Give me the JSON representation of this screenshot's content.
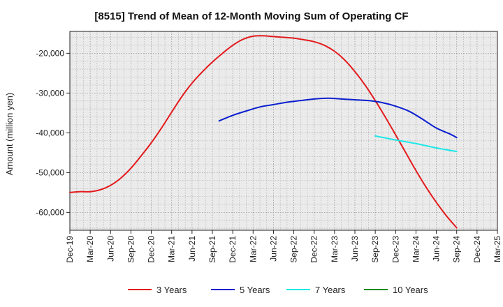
{
  "chart_data": {
    "type": "line",
    "title": "[8515]  Trend of Mean of 12-Month Moving Sum of Operating CF",
    "xlabel": "",
    "ylabel": "Amount (million yen)",
    "ylim": [
      -64500,
      -14500
    ],
    "yticks": [
      -60000,
      -50000,
      -40000,
      -30000,
      -20000
    ],
    "ytick_labels": [
      "-60,000",
      "-50,000",
      "-40,000",
      "-30,000",
      "-20,000"
    ],
    "x_labels": [
      "Dec-19",
      "Mar-20",
      "Jun-20",
      "Sep-20",
      "Dec-20",
      "Mar-21",
      "Jun-21",
      "Sep-21",
      "Dec-21",
      "Mar-22",
      "Jun-22",
      "Sep-22",
      "Dec-22",
      "Mar-23",
      "Jun-23",
      "Sep-23",
      "Dec-23",
      "Mar-24",
      "Jun-24",
      "Sep-24",
      "Dec-24",
      "Mar-25"
    ],
    "grid": true,
    "legend_position": "bottom",
    "series": [
      {
        "name": "3 Years",
        "color": "#e31a1c",
        "points": [
          [
            0,
            -55000
          ],
          [
            0.5,
            -54800
          ],
          [
            1,
            -54800
          ],
          [
            1.5,
            -54300
          ],
          [
            2,
            -53200
          ],
          [
            2.5,
            -51400
          ],
          [
            3,
            -48900
          ],
          [
            3.5,
            -45800
          ],
          [
            4,
            -42500
          ],
          [
            4.5,
            -38800
          ],
          [
            5,
            -34800
          ],
          [
            5.5,
            -30900
          ],
          [
            6,
            -27500
          ],
          [
            6.5,
            -24700
          ],
          [
            7,
            -22200
          ],
          [
            7.5,
            -20000
          ],
          [
            8,
            -18000
          ],
          [
            8.5,
            -16500
          ],
          [
            9,
            -15700
          ],
          [
            9.5,
            -15600
          ],
          [
            10,
            -15800
          ],
          [
            10.5,
            -16000
          ],
          [
            11,
            -16200
          ],
          [
            11.5,
            -16600
          ],
          [
            12,
            -17100
          ],
          [
            12.5,
            -18000
          ],
          [
            13,
            -19500
          ],
          [
            13.5,
            -21700
          ],
          [
            14,
            -24600
          ],
          [
            14.5,
            -28000
          ],
          [
            15,
            -31900
          ],
          [
            15.5,
            -36100
          ],
          [
            16,
            -40500
          ],
          [
            16.5,
            -45000
          ],
          [
            17,
            -49500
          ],
          [
            17.5,
            -53700
          ],
          [
            18,
            -57500
          ],
          [
            18.5,
            -60900
          ],
          [
            19,
            -63900
          ]
        ]
      },
      {
        "name": "5 Years",
        "color": "#0a1fcf",
        "points": [
          [
            7.33,
            -37000
          ],
          [
            8,
            -35600
          ],
          [
            8.67,
            -34500
          ],
          [
            9.33,
            -33500
          ],
          [
            10,
            -32900
          ],
          [
            10.67,
            -32300
          ],
          [
            11.33,
            -31900
          ],
          [
            12,
            -31500
          ],
          [
            12.67,
            -31300
          ],
          [
            13.33,
            -31500
          ],
          [
            14,
            -31700
          ],
          [
            14.67,
            -31900
          ],
          [
            15.33,
            -32400
          ],
          [
            16,
            -33300
          ],
          [
            16.67,
            -34600
          ],
          [
            17.33,
            -36600
          ],
          [
            18,
            -38800
          ],
          [
            18.67,
            -40300
          ],
          [
            19,
            -41200
          ]
        ]
      },
      {
        "name": "7 Years",
        "color": "#1ee8e8",
        "points": [
          [
            15,
            -40800
          ],
          [
            16,
            -41800
          ],
          [
            17,
            -42700
          ],
          [
            18,
            -43800
          ],
          [
            19,
            -44700
          ]
        ]
      },
      {
        "name": "10 Years",
        "color": "#1e8a1e",
        "points": []
      }
    ]
  }
}
